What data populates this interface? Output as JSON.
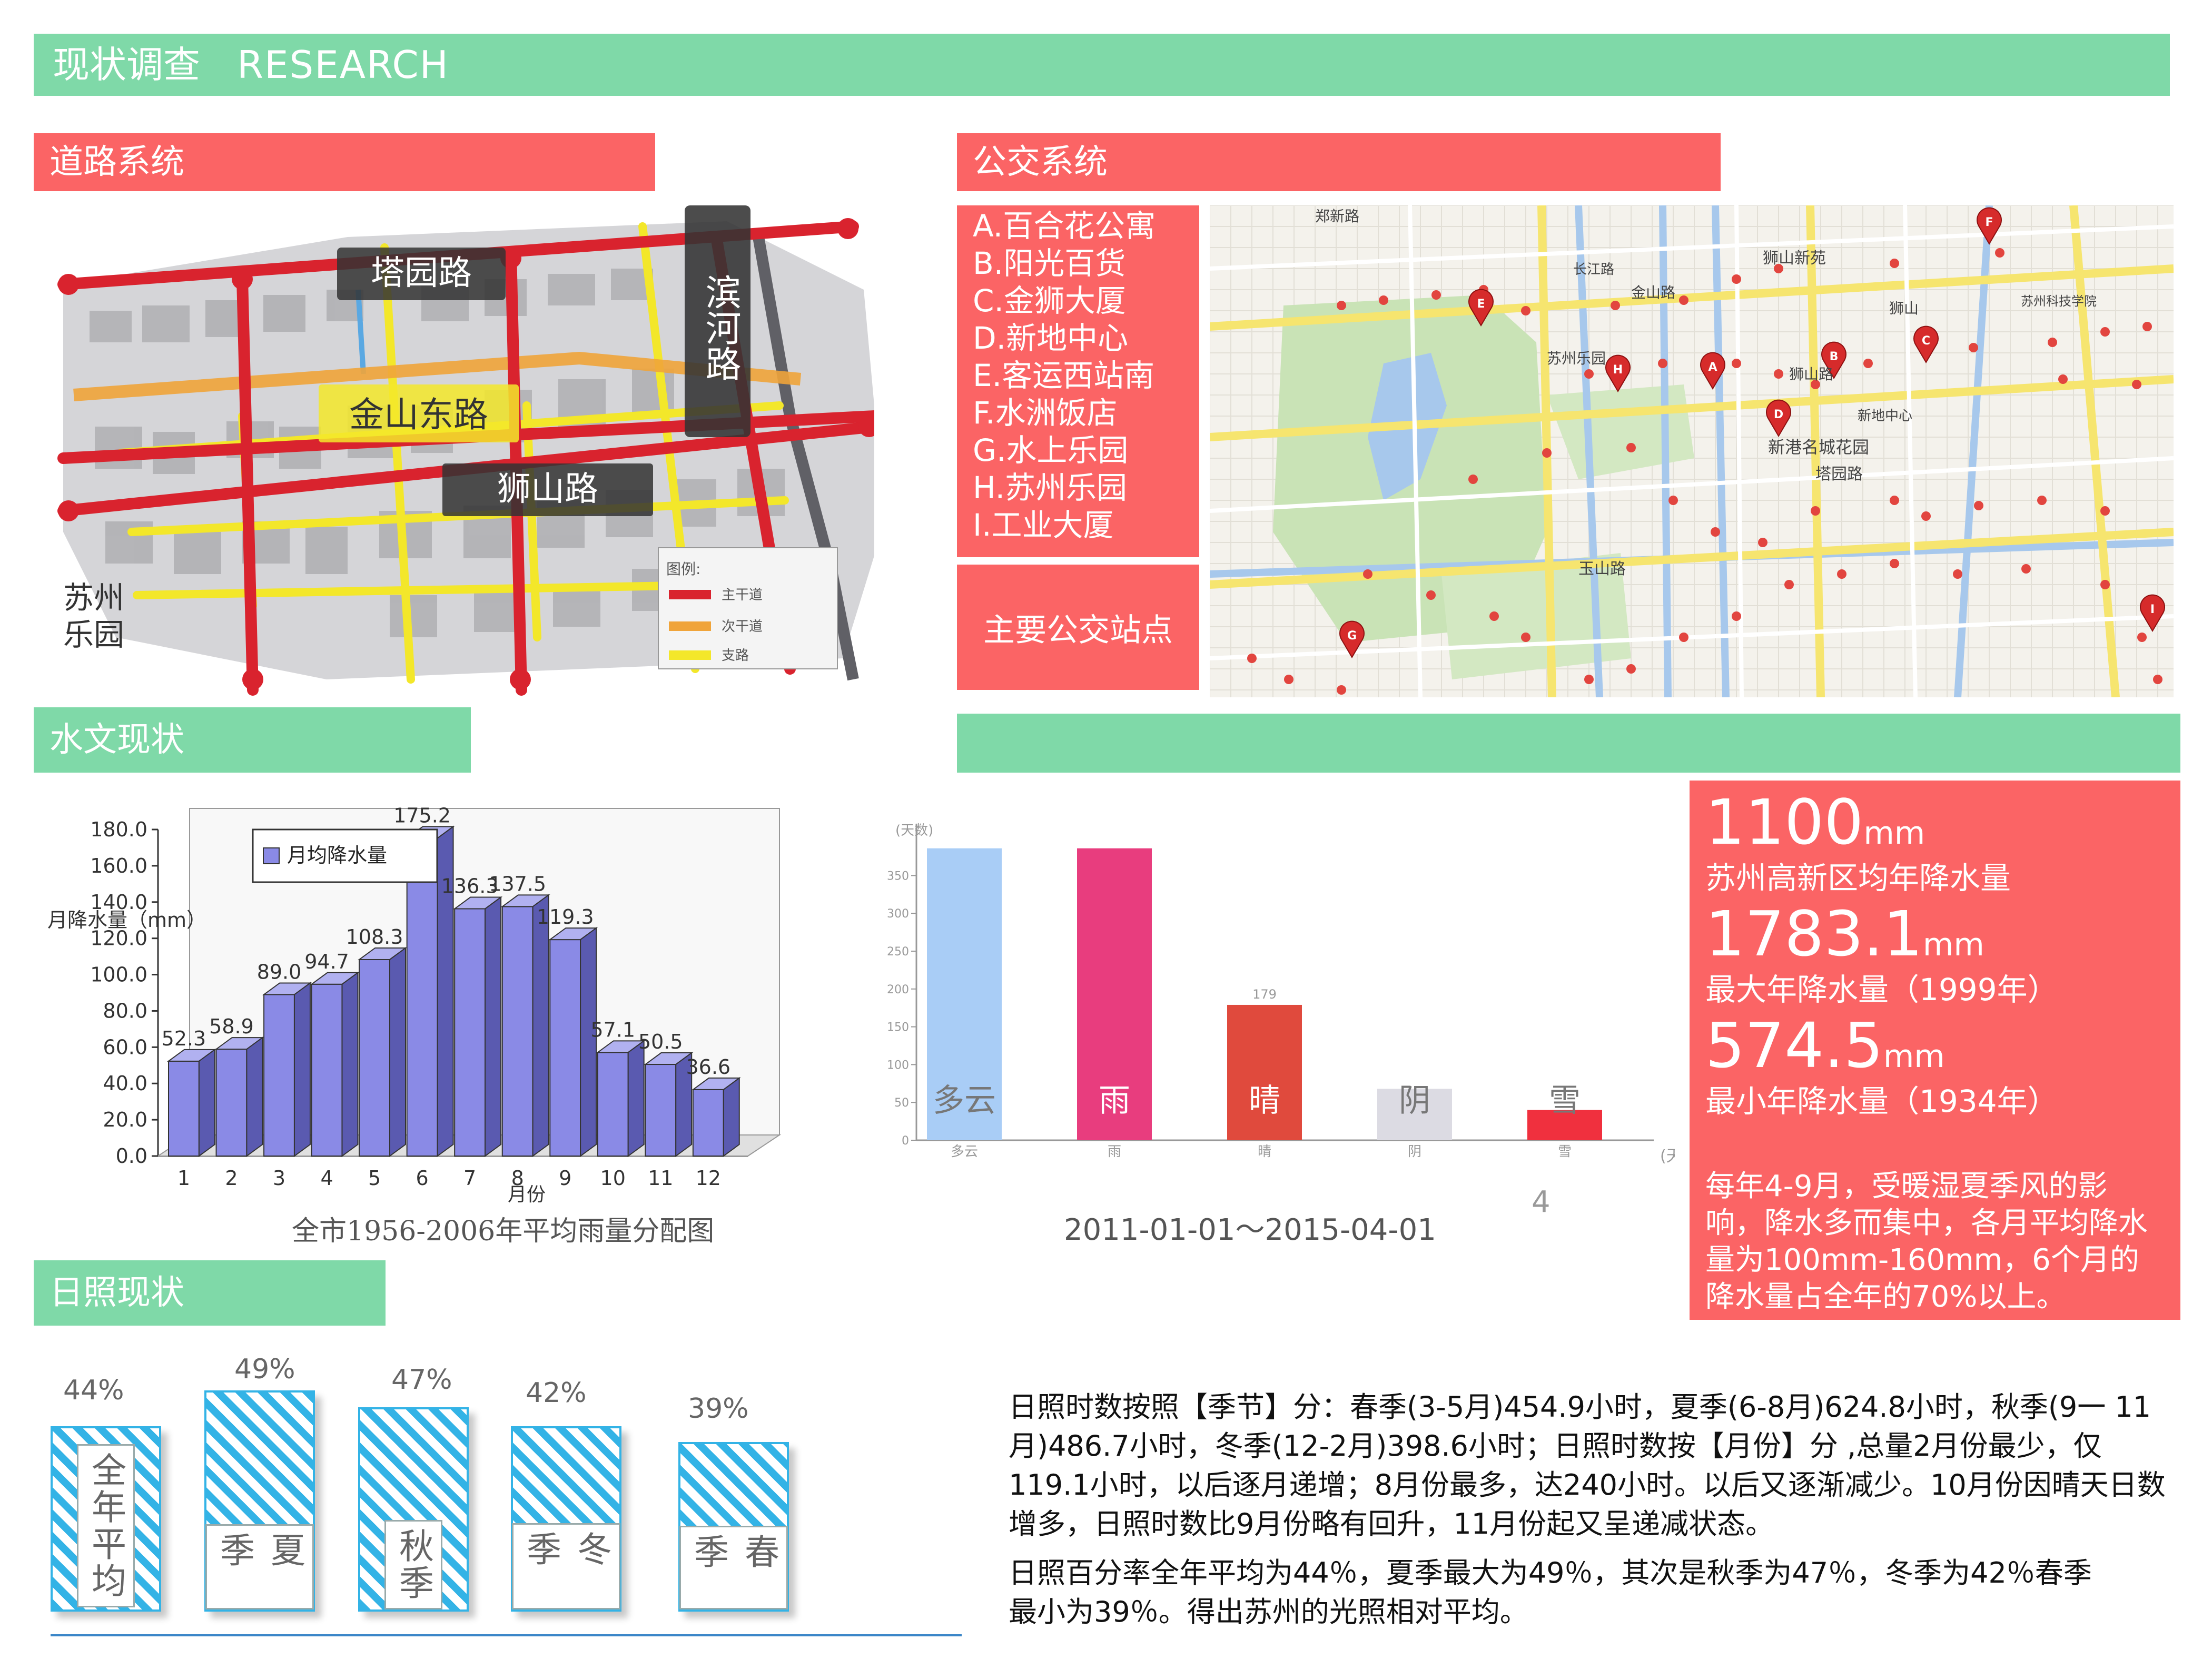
{
  "header": {
    "title": "现状调查",
    "title_en": "RESEARCH"
  },
  "road": {
    "section_title": "道路系统",
    "labels": {
      "tayuan": "塔园路",
      "binhe": "滨河路",
      "jinshan": "金山东路",
      "shishan": "狮山路",
      "park": "苏州乐园"
    },
    "legend": {
      "title": "图例:",
      "items": [
        "主干道",
        "次干道",
        "支路"
      ]
    },
    "legend_colors": [
      "#d9232e",
      "#f0a43a",
      "#f3e72a"
    ]
  },
  "bus": {
    "section_title": "公交系统",
    "stops": [
      "A.百合花公寓",
      "B.阳光百货",
      "C.金狮大厦",
      "D.新地中心",
      "E.客运西站南",
      "F.水洲饭店",
      "G.水上乐园",
      "H.苏州乐园",
      "I.工业大厦"
    ],
    "caption": "主要公交站点",
    "map_markers": [
      "A",
      "B",
      "C",
      "D",
      "E",
      "F",
      "G",
      "H",
      "I"
    ],
    "map_labels": [
      "狮山新苑",
      "苏州乐园",
      "狮山路",
      "新港名城花园",
      "塔园路",
      "玉山路",
      "金山路",
      "长江路",
      "新地中心",
      "狮山",
      "苏州科技学院",
      "郑新路"
    ]
  },
  "hydro": {
    "section_title": "水文现状",
    "chart_caption": "全市1956-2006年平均雨量分配图"
  },
  "chart_data": [
    {
      "type": "bar",
      "legend": "月均降水量",
      "ylabel": "月降水量（mm）",
      "xlabel": "月份",
      "categories": [
        "1",
        "2",
        "3",
        "4",
        "5",
        "6",
        "7",
        "8",
        "9",
        "10",
        "11",
        "12"
      ],
      "values": [
        52.3,
        58.9,
        89.0,
        94.7,
        108.3,
        175.2,
        136.3,
        137.5,
        119.3,
        57.1,
        50.5,
        36.6
      ],
      "value_labels": [
        "52.3",
        "58.9",
        "89.0",
        "94.7",
        "108.3",
        "175.2",
        "136.3",
        "137.5",
        "119.3",
        "57.1",
        "50.5",
        "36.6"
      ],
      "ylim": [
        0,
        180
      ],
      "yticks": [
        "0.0",
        "20.0",
        "40.0",
        "60.0",
        "80.0",
        "100.0",
        "120.0",
        "140.0",
        "160.0",
        "180.0"
      ],
      "grid": false,
      "legend_position": "top-left",
      "bar_color": "#8a8ae6"
    },
    {
      "type": "bar",
      "ylabel": "(天数)",
      "xlabel": "(天",
      "categories": [
        "多云",
        "雨",
        "晴",
        "阴",
        "雪"
      ],
      "values": [
        386,
        386,
        179,
        68,
        40
      ],
      "value_labels": [
        "",
        "",
        "179",
        "",
        ""
      ],
      "ylim": [
        0,
        390
      ],
      "yticks": [
        "0",
        "50",
        "100",
        "150",
        "200",
        "250",
        "300",
        "350"
      ],
      "colors": [
        "#a9cdf6",
        "#e83d7e",
        "#e04a3d",
        "#dcdbe3",
        "#f0303e"
      ],
      "caption": "2011-01-01～2015-04-01",
      "page_number": "4"
    },
    {
      "type": "bar",
      "categories": [
        "全年平均",
        "夏季",
        "秋季",
        "冬季",
        "春季"
      ],
      "values": [
        44,
        49,
        47,
        42,
        39
      ],
      "value_labels": [
        "44%",
        "49%",
        "47%",
        "42%",
        "39%"
      ]
    }
  ],
  "rain": {
    "avg_value": "1100",
    "avg_unit": "mm",
    "avg_caption": "苏州高新区均年降水量",
    "max_value": "1783.1",
    "max_unit": "mm",
    "max_caption": "最大年降水量（1999年）",
    "min_value": "574.5",
    "min_unit": "mm",
    "min_caption": "最小年降水量（1934年）",
    "desc": "每年4-9月，受暖湿夏季风的影响，降水多而集中，各月平均降水量为100mm-160mm，6个月的降水量占全年的70%以上。"
  },
  "sun": {
    "section_title": "日照现状",
    "para1": "日照时数按照【季节】分：春季(3-5月)454.9小时，夏季(6-8月)624.8小时，秋季(9一 11月)486.7小时，冬季(12-2月)398.6小时；日照时数按【月份】分 ,总量2月份最少，仅 119.1小时，以后逐月递增；8月份最多，达240小时。以后又逐渐减少。10月份因晴天日数增多，日照时数比9月份略有回升，11月份起又呈递减状态。",
    "para2": "日照百分率全年平均为44％，夏季最大为49％，其次是秋季为47％，冬季为42％春季最小为39％。得出苏州的光照相对平均。"
  }
}
